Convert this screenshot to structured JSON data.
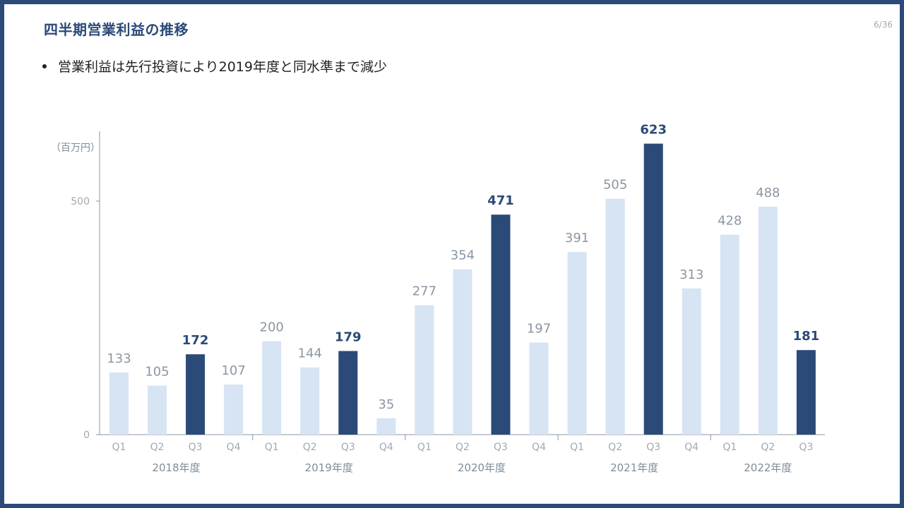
{
  "slide": {
    "title": "四半期営業利益の推移",
    "page": "6/36",
    "bullet": "営業利益は先行投資により2019年度と同水準まで減少"
  },
  "chart_data": {
    "type": "bar",
    "unit_label": "（百万円）",
    "y_ticks": [
      0,
      500
    ],
    "ylim": [
      0,
      623
    ],
    "categories": [
      "Q1",
      "Q2",
      "Q3",
      "Q4",
      "Q1",
      "Q2",
      "Q3",
      "Q4",
      "Q1",
      "Q2",
      "Q3",
      "Q4",
      "Q1",
      "Q2",
      "Q3",
      "Q4",
      "Q1",
      "Q2",
      "Q3"
    ],
    "values": [
      133,
      105,
      172,
      107,
      200,
      144,
      179,
      35,
      277,
      354,
      471,
      197,
      391,
      505,
      623,
      313,
      428,
      488,
      181
    ],
    "highlight": [
      false,
      false,
      true,
      false,
      false,
      false,
      true,
      false,
      false,
      false,
      true,
      false,
      false,
      false,
      true,
      false,
      false,
      false,
      true
    ],
    "groups": [
      {
        "label": "2018年度",
        "count": 4
      },
      {
        "label": "2019年度",
        "count": 4
      },
      {
        "label": "2020年度",
        "count": 4
      },
      {
        "label": "2021年度",
        "count": 4
      },
      {
        "label": "2022年度",
        "count": 3
      }
    ],
    "colors": {
      "normal": "#d6e4f3",
      "highlight": "#2b4a78",
      "axis": "#8c96a3",
      "label_normal": "#8c96a3",
      "label_highlight": "#2b4a78"
    }
  }
}
